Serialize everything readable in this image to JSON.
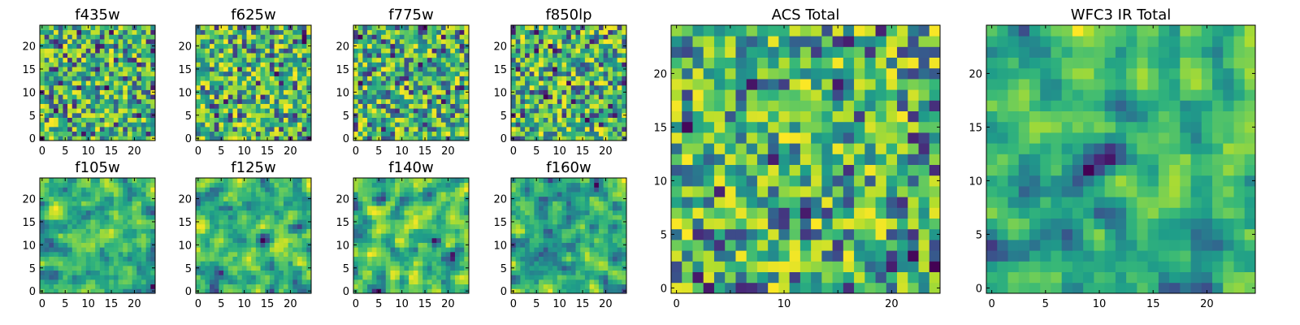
{
  "figure": {
    "colormap": "viridis",
    "panels": [
      {
        "title": "f435w",
        "type": "heatmap",
        "grid": [
          25,
          25
        ],
        "x_range": [
          0,
          24
        ],
        "y_range": [
          0,
          24
        ],
        "x_ticks": [
          0,
          5,
          10,
          15,
          20
        ],
        "y_ticks": [
          0,
          5,
          10,
          15,
          20
        ],
        "texture": "noise",
        "seed": 11
      },
      {
        "title": "f625w",
        "type": "heatmap",
        "grid": [
          25,
          25
        ],
        "x_range": [
          0,
          24
        ],
        "y_range": [
          0,
          24
        ],
        "x_ticks": [
          0,
          5,
          10,
          15,
          20
        ],
        "y_ticks": [
          0,
          5,
          10,
          15,
          20
        ],
        "texture": "noise",
        "seed": 23
      },
      {
        "title": "f775w",
        "type": "heatmap",
        "grid": [
          25,
          25
        ],
        "x_range": [
          0,
          24
        ],
        "y_range": [
          0,
          24
        ],
        "x_ticks": [
          0,
          5,
          10,
          15,
          20
        ],
        "y_ticks": [
          0,
          5,
          10,
          15,
          20
        ],
        "texture": "noise",
        "seed": 37
      },
      {
        "title": "f850lp",
        "type": "heatmap",
        "grid": [
          25,
          25
        ],
        "x_range": [
          0,
          24
        ],
        "y_range": [
          0,
          24
        ],
        "x_ticks": [
          0,
          5,
          10,
          15,
          20
        ],
        "y_ticks": [
          0,
          5,
          10,
          15,
          20
        ],
        "texture": "noise",
        "seed": 41
      },
      {
        "title": "f105w",
        "type": "heatmap",
        "grid": [
          25,
          25
        ],
        "x_range": [
          0,
          24
        ],
        "y_range": [
          0,
          24
        ],
        "x_ticks": [
          0,
          5,
          10,
          15,
          20
        ],
        "y_ticks": [
          0,
          5,
          10,
          15,
          20
        ],
        "texture": "smooth",
        "seed": 53
      },
      {
        "title": "f125w",
        "type": "heatmap",
        "grid": [
          25,
          25
        ],
        "x_range": [
          0,
          24
        ],
        "y_range": [
          0,
          24
        ],
        "x_ticks": [
          0,
          5,
          10,
          15,
          20
        ],
        "y_ticks": [
          0,
          5,
          10,
          15,
          20
        ],
        "texture": "smooth",
        "seed": 67
      },
      {
        "title": "f140w",
        "type": "heatmap",
        "grid": [
          25,
          25
        ],
        "x_range": [
          0,
          24
        ],
        "y_range": [
          0,
          24
        ],
        "x_ticks": [
          0,
          5,
          10,
          15,
          20
        ],
        "y_ticks": [
          0,
          5,
          10,
          15,
          20
        ],
        "texture": "smooth",
        "seed": 71
      },
      {
        "title": "f160w",
        "type": "heatmap",
        "grid": [
          25,
          25
        ],
        "x_range": [
          0,
          24
        ],
        "y_range": [
          0,
          24
        ],
        "x_ticks": [
          0,
          5,
          10,
          15,
          20
        ],
        "y_ticks": [
          0,
          5,
          10,
          15,
          20
        ],
        "texture": "smooth",
        "seed": 83
      },
      {
        "title": "ACS Total",
        "type": "heatmap",
        "grid": [
          25,
          25
        ],
        "x_range": [
          0,
          24
        ],
        "y_range": [
          0,
          24
        ],
        "x_ticks": [
          0,
          10,
          20
        ],
        "x_minor_ticks": [
          5,
          15
        ],
        "y_ticks": [
          0,
          5,
          10,
          15,
          20
        ],
        "texture": "noise",
        "seed": 97
      },
      {
        "title": "WFC3 IR Total",
        "type": "heatmap",
        "grid": [
          25,
          25
        ],
        "x_range": [
          0,
          24
        ],
        "y_range": [
          0,
          24
        ],
        "x_ticks": [
          0,
          5,
          10,
          15,
          20
        ],
        "y_ticks": [
          0,
          5,
          10,
          15,
          20
        ],
        "texture": "smooth",
        "seed": 101
      }
    ]
  }
}
